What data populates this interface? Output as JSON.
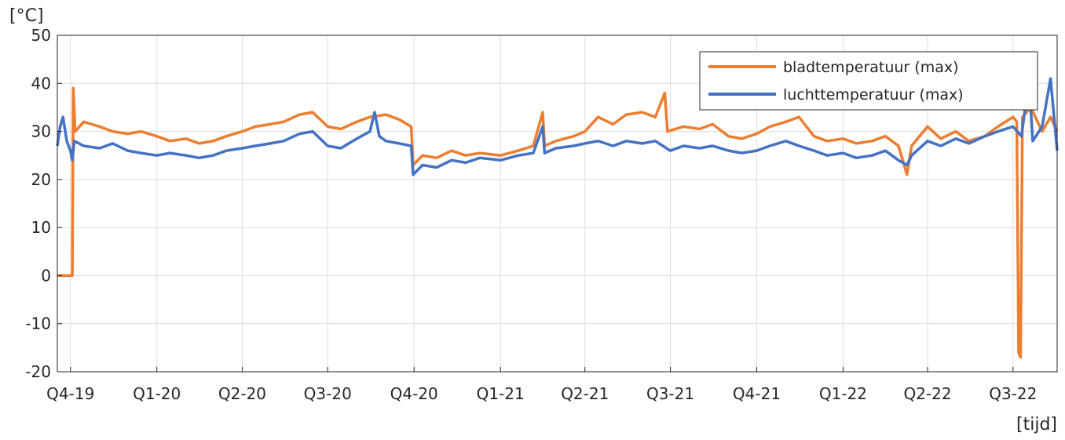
{
  "chart_data": {
    "type": "line",
    "title": "",
    "ylabel": "[°C]",
    "xlabel": "[tijd]",
    "ylim": [
      -20,
      50
    ],
    "yticks": [
      -20,
      -10,
      0,
      10,
      20,
      30,
      40,
      50
    ],
    "xlim": [
      "2019-09-17",
      "2022-08-17"
    ],
    "xticks": [
      {
        "label": "Q4-19",
        "date": "2019-10-01"
      },
      {
        "label": "Q1-20",
        "date": "2020-01-01"
      },
      {
        "label": "Q2-20",
        "date": "2020-04-01"
      },
      {
        "label": "Q3-20",
        "date": "2020-07-01"
      },
      {
        "label": "Q4-20",
        "date": "2020-10-01"
      },
      {
        "label": "Q1-21",
        "date": "2021-01-01"
      },
      {
        "label": "Q2-21",
        "date": "2021-04-01"
      },
      {
        "label": "Q3-21",
        "date": "2021-07-01"
      },
      {
        "label": "Q4-21",
        "date": "2021-10-01"
      },
      {
        "label": "Q1-22",
        "date": "2022-01-01"
      },
      {
        "label": "Q2-22",
        "date": "2022-04-01"
      },
      {
        "label": "Q3-22",
        "date": "2022-07-01"
      }
    ],
    "grid": true,
    "legend": "top-right",
    "series": [
      {
        "name": "bladtemperatuur (max)",
        "color": "#ED7D31",
        "points": [
          [
            "2019-09-17",
            0
          ],
          [
            "2019-10-01",
            0
          ],
          [
            "2019-10-03",
            0
          ],
          [
            "2019-10-04",
            39
          ],
          [
            "2019-10-06",
            30
          ],
          [
            "2019-10-15",
            32
          ],
          [
            "2019-11-01",
            31
          ],
          [
            "2019-11-15",
            30
          ],
          [
            "2019-12-01",
            29.5
          ],
          [
            "2019-12-15",
            30
          ],
          [
            "2020-01-01",
            29
          ],
          [
            "2020-01-15",
            28
          ],
          [
            "2020-02-01",
            28.5
          ],
          [
            "2020-02-15",
            27.5
          ],
          [
            "2020-03-01",
            28
          ],
          [
            "2020-03-15",
            29
          ],
          [
            "2020-04-01",
            30
          ],
          [
            "2020-04-15",
            31
          ],
          [
            "2020-05-01",
            31.5
          ],
          [
            "2020-05-15",
            32
          ],
          [
            "2020-06-01",
            33.5
          ],
          [
            "2020-06-15",
            34
          ],
          [
            "2020-07-01",
            31
          ],
          [
            "2020-07-15",
            30.5
          ],
          [
            "2020-08-01",
            32
          ],
          [
            "2020-08-15",
            33
          ],
          [
            "2020-09-01",
            33.5
          ],
          [
            "2020-09-15",
            32.5
          ],
          [
            "2020-09-28",
            31
          ],
          [
            "2020-09-30",
            23
          ],
          [
            "2020-10-10",
            25
          ],
          [
            "2020-10-25",
            24.5
          ],
          [
            "2020-11-10",
            26
          ],
          [
            "2020-11-25",
            25
          ],
          [
            "2020-12-10",
            25.5
          ],
          [
            "2021-01-01",
            25
          ],
          [
            "2021-01-20",
            26
          ],
          [
            "2021-02-05",
            27
          ],
          [
            "2021-02-15",
            34
          ],
          [
            "2021-02-17",
            27
          ],
          [
            "2021-03-01",
            28
          ],
          [
            "2021-03-20",
            29
          ],
          [
            "2021-04-01",
            30
          ],
          [
            "2021-04-15",
            33
          ],
          [
            "2021-05-01",
            31.5
          ],
          [
            "2021-05-15",
            33.5
          ],
          [
            "2021-06-01",
            34
          ],
          [
            "2021-06-15",
            33
          ],
          [
            "2021-06-25",
            38
          ],
          [
            "2021-06-28",
            30
          ],
          [
            "2021-07-15",
            31
          ],
          [
            "2021-08-01",
            30.5
          ],
          [
            "2021-08-15",
            31.5
          ],
          [
            "2021-09-01",
            29
          ],
          [
            "2021-09-15",
            28.5
          ],
          [
            "2021-10-01",
            29.5
          ],
          [
            "2021-10-15",
            31
          ],
          [
            "2021-11-01",
            32
          ],
          [
            "2021-11-15",
            33
          ],
          [
            "2021-12-01",
            29
          ],
          [
            "2021-12-15",
            28
          ],
          [
            "2022-01-01",
            28.5
          ],
          [
            "2022-01-15",
            27.5
          ],
          [
            "2022-02-01",
            28
          ],
          [
            "2022-02-15",
            29
          ],
          [
            "2022-03-01",
            27
          ],
          [
            "2022-03-10",
            21
          ],
          [
            "2022-03-15",
            27
          ],
          [
            "2022-04-01",
            31
          ],
          [
            "2022-04-15",
            28.5
          ],
          [
            "2022-05-01",
            30
          ],
          [
            "2022-05-15",
            28
          ],
          [
            "2022-06-01",
            29
          ],
          [
            "2022-06-15",
            31
          ],
          [
            "2022-07-01",
            33
          ],
          [
            "2022-07-05",
            32
          ],
          [
            "2022-07-07",
            -16
          ],
          [
            "2022-07-09",
            -17
          ],
          [
            "2022-07-11",
            33
          ],
          [
            "2022-07-20",
            35
          ],
          [
            "2022-08-01",
            30
          ],
          [
            "2022-08-10",
            33
          ],
          [
            "2022-08-17",
            30
          ]
        ]
      },
      {
        "name": "luchttemperatuur (max)",
        "color": "#4472C4",
        "points": [
          [
            "2019-09-17",
            27
          ],
          [
            "2019-09-20",
            31
          ],
          [
            "2019-09-23",
            33
          ],
          [
            "2019-09-27",
            28
          ],
          [
            "2019-10-01",
            26
          ],
          [
            "2019-10-03",
            24
          ],
          [
            "2019-10-05",
            28
          ],
          [
            "2019-10-15",
            27
          ],
          [
            "2019-11-01",
            26.5
          ],
          [
            "2019-11-15",
            27.5
          ],
          [
            "2019-12-01",
            26
          ],
          [
            "2019-12-15",
            25.5
          ],
          [
            "2020-01-01",
            25
          ],
          [
            "2020-01-15",
            25.5
          ],
          [
            "2020-02-01",
            25
          ],
          [
            "2020-02-15",
            24.5
          ],
          [
            "2020-03-01",
            25
          ],
          [
            "2020-03-15",
            26
          ],
          [
            "2020-04-01",
            26.5
          ],
          [
            "2020-04-15",
            27
          ],
          [
            "2020-05-01",
            27.5
          ],
          [
            "2020-05-15",
            28
          ],
          [
            "2020-06-01",
            29.5
          ],
          [
            "2020-06-15",
            30
          ],
          [
            "2020-07-01",
            27
          ],
          [
            "2020-07-15",
            26.5
          ],
          [
            "2020-08-01",
            28.5
          ],
          [
            "2020-08-15",
            30
          ],
          [
            "2020-08-20",
            34
          ],
          [
            "2020-08-25",
            29
          ],
          [
            "2020-09-01",
            28
          ],
          [
            "2020-09-15",
            27.5
          ],
          [
            "2020-09-28",
            27
          ],
          [
            "2020-09-30",
            21
          ],
          [
            "2020-10-10",
            23
          ],
          [
            "2020-10-25",
            22.5
          ],
          [
            "2020-11-10",
            24
          ],
          [
            "2020-11-25",
            23.5
          ],
          [
            "2020-12-10",
            24.5
          ],
          [
            "2021-01-01",
            24
          ],
          [
            "2021-01-20",
            25
          ],
          [
            "2021-02-05",
            25.5
          ],
          [
            "2021-02-15",
            31
          ],
          [
            "2021-02-17",
            25.5
          ],
          [
            "2021-03-01",
            26.5
          ],
          [
            "2021-03-20",
            27
          ],
          [
            "2021-04-01",
            27.5
          ],
          [
            "2021-04-15",
            28
          ],
          [
            "2021-05-01",
            27
          ],
          [
            "2021-05-15",
            28
          ],
          [
            "2021-06-01",
            27.5
          ],
          [
            "2021-06-15",
            28
          ],
          [
            "2021-07-01",
            26
          ],
          [
            "2021-07-15",
            27
          ],
          [
            "2021-08-01",
            26.5
          ],
          [
            "2021-08-15",
            27
          ],
          [
            "2021-09-01",
            26
          ],
          [
            "2021-09-15",
            25.5
          ],
          [
            "2021-10-01",
            26
          ],
          [
            "2021-10-15",
            27
          ],
          [
            "2021-11-01",
            28
          ],
          [
            "2021-11-15",
            27
          ],
          [
            "2021-12-01",
            26
          ],
          [
            "2021-12-15",
            25
          ],
          [
            "2022-01-01",
            25.5
          ],
          [
            "2022-01-15",
            24.5
          ],
          [
            "2022-02-01",
            25
          ],
          [
            "2022-02-15",
            26
          ],
          [
            "2022-03-01",
            24
          ],
          [
            "2022-03-10",
            23
          ],
          [
            "2022-03-15",
            25
          ],
          [
            "2022-04-01",
            28
          ],
          [
            "2022-04-15",
            27
          ],
          [
            "2022-05-01",
            28.5
          ],
          [
            "2022-05-15",
            27.5
          ],
          [
            "2022-06-01",
            29
          ],
          [
            "2022-06-15",
            30
          ],
          [
            "2022-07-01",
            31
          ],
          [
            "2022-07-10",
            29
          ],
          [
            "2022-07-18",
            41
          ],
          [
            "2022-07-22",
            28
          ],
          [
            "2022-08-01",
            31
          ],
          [
            "2022-08-10",
            41
          ],
          [
            "2022-08-17",
            26
          ]
        ]
      }
    ]
  }
}
